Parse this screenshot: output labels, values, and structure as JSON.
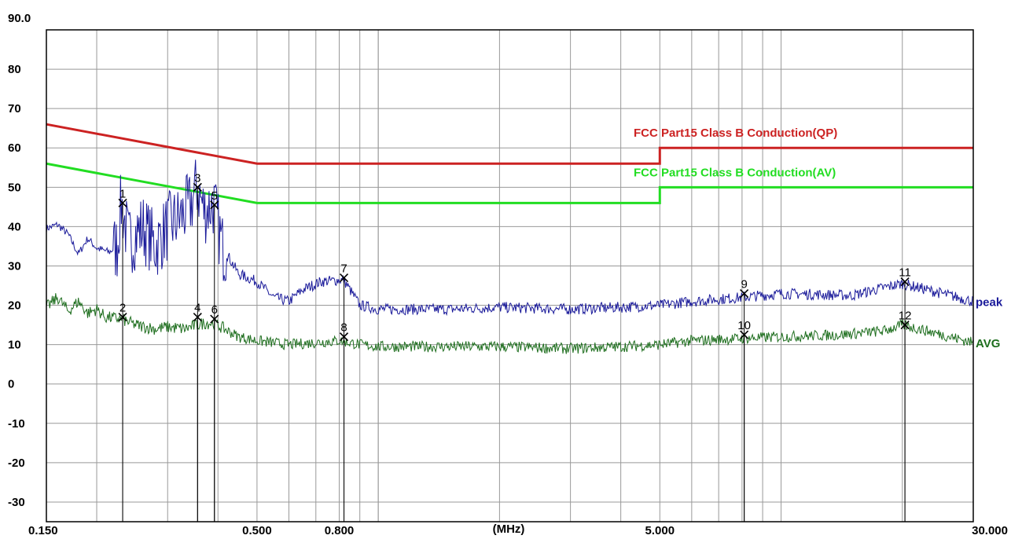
{
  "chart_data": {
    "type": "line",
    "title": "",
    "xlabel": "(MHz)",
    "ylabel": "",
    "x_scale": "log",
    "xlim": [
      0.15,
      30
    ],
    "ylim": [
      -35,
      90
    ],
    "grid": true,
    "y_ticks": [
      "90.0",
      "80",
      "70",
      "60",
      "50",
      "40",
      "30",
      "20",
      "10",
      "0",
      "-10",
      "-20",
      "-30"
    ],
    "y_tick_values": [
      90,
      80,
      70,
      60,
      50,
      40,
      30,
      20,
      10,
      0,
      -10,
      -20,
      -30
    ],
    "x_ticks": [
      {
        "label": "0.150",
        "value": 0.15
      },
      {
        "label": "0.500",
        "value": 0.5
      },
      {
        "label": "0.800",
        "value": 0.8
      },
      {
        "label": "5.000",
        "value": 5
      },
      {
        "label": "30.000",
        "value": 30
      }
    ],
    "limits": [
      {
        "name": "FCC Part15 Class B Conduction(QP)",
        "color": "#cc2222",
        "points": [
          [
            0.15,
            66
          ],
          [
            0.5,
            56
          ],
          [
            5,
            56
          ],
          [
            5,
            60
          ],
          [
            30,
            60
          ]
        ]
      },
      {
        "name": "FCC Part15 Class B Conduction(AV)",
        "color": "#22dd22",
        "points": [
          [
            0.15,
            56
          ],
          [
            0.5,
            46
          ],
          [
            5,
            46
          ],
          [
            5,
            50
          ],
          [
            30,
            50
          ]
        ]
      }
    ],
    "series": [
      {
        "name": "peak",
        "color": "#1a1a9a",
        "points": [
          [
            0.15,
            39.5
          ],
          [
            0.16,
            40.5
          ],
          [
            0.17,
            38
          ],
          [
            0.18,
            33
          ],
          [
            0.19,
            37
          ],
          [
            0.2,
            34.5
          ],
          [
            0.215,
            33.5
          ],
          [
            0.225,
            35
          ],
          [
            0.23,
            46
          ],
          [
            0.24,
            36
          ],
          [
            0.26,
            40
          ],
          [
            0.28,
            35
          ],
          [
            0.3,
            40
          ],
          [
            0.32,
            42
          ],
          [
            0.34,
            45
          ],
          [
            0.355,
            50
          ],
          [
            0.37,
            44
          ],
          [
            0.39,
            46
          ],
          [
            0.41,
            35
          ],
          [
            0.45,
            28
          ],
          [
            0.5,
            26
          ],
          [
            0.55,
            22
          ],
          [
            0.6,
            21
          ],
          [
            0.65,
            24
          ],
          [
            0.72,
            26
          ],
          [
            0.82,
            26.5
          ],
          [
            0.9,
            20
          ],
          [
            1.0,
            19
          ],
          [
            1.5,
            19
          ],
          [
            2,
            19.5
          ],
          [
            3,
            19
          ],
          [
            4,
            19.5
          ],
          [
            5,
            20
          ],
          [
            6,
            21
          ],
          [
            8,
            22
          ],
          [
            10,
            23
          ],
          [
            15,
            22.5
          ],
          [
            18,
            24.5
          ],
          [
            20,
            25.5
          ],
          [
            24,
            23.5
          ],
          [
            30,
            21
          ]
        ]
      },
      {
        "name": "AVG",
        "color": "#1e6e1e",
        "points": [
          [
            0.15,
            19.5
          ],
          [
            0.16,
            22
          ],
          [
            0.17,
            18.5
          ],
          [
            0.18,
            21
          ],
          [
            0.19,
            18
          ],
          [
            0.2,
            19
          ],
          [
            0.21,
            17
          ],
          [
            0.23,
            16.5
          ],
          [
            0.25,
            15
          ],
          [
            0.28,
            14
          ],
          [
            0.3,
            14.5
          ],
          [
            0.33,
            14
          ],
          [
            0.355,
            15
          ],
          [
            0.37,
            15.5
          ],
          [
            0.39,
            15.5
          ],
          [
            0.45,
            12
          ],
          [
            0.5,
            11
          ],
          [
            0.6,
            10
          ],
          [
            0.8,
            11
          ],
          [
            0.9,
            10
          ],
          [
            1,
            9.5
          ],
          [
            2,
            9.5
          ],
          [
            3,
            9
          ],
          [
            4,
            9.5
          ],
          [
            5,
            10
          ],
          [
            6,
            11
          ],
          [
            10,
            12
          ],
          [
            14,
            12.5
          ],
          [
            18,
            13.5
          ],
          [
            20,
            15
          ],
          [
            22,
            14
          ],
          [
            30,
            10.5
          ]
        ]
      }
    ],
    "markers": [
      {
        "label": "1",
        "x": 0.232,
        "y": 46
      },
      {
        "label": "2",
        "x": 0.232,
        "y": 17
      },
      {
        "label": "3",
        "x": 0.356,
        "y": 50
      },
      {
        "label": "4",
        "x": 0.356,
        "y": 17
      },
      {
        "label": "5",
        "x": 0.392,
        "y": 45.5
      },
      {
        "label": "6",
        "x": 0.392,
        "y": 16.5
      },
      {
        "label": "7",
        "x": 0.822,
        "y": 27
      },
      {
        "label": "8",
        "x": 0.822,
        "y": 12
      },
      {
        "label": "9",
        "x": 8.1,
        "y": 23
      },
      {
        "label": "10",
        "x": 8.1,
        "y": 12.5
      },
      {
        "label": "11",
        "x": 20.3,
        "y": 26
      },
      {
        "label": "12",
        "x": 20.3,
        "y": 15
      }
    ]
  }
}
